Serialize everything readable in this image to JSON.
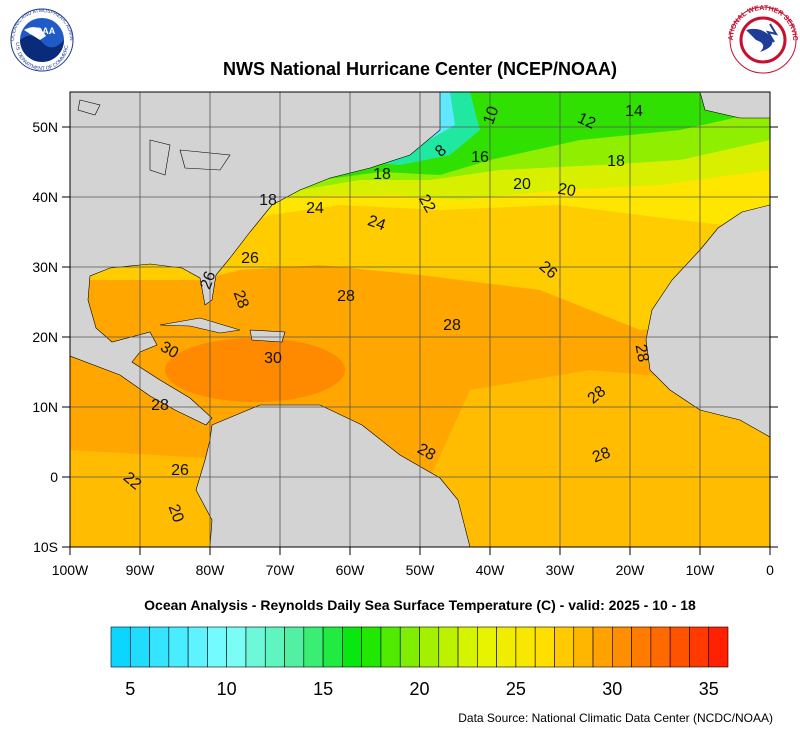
{
  "header": {
    "title": "NWS National Hurricane Center (NCEP/NOAA)",
    "subtitle": "Ocean Analysis - Reynolds Daily Sea Surface Temperature (C) - valid: 2025 - 10 - 18",
    "source": "Data Source: National Climatic Data Center (NCDC/NOAA)"
  },
  "logos": {
    "noaa": "NOAA",
    "noaa_ring": "NATIONAL OCEANIC AND ATMOSPHERIC ADMINISTRATION",
    "noaa_ring_bottom": "U.S. DEPARTMENT OF COMMERCE",
    "nws_ring": "NATIONAL WEATHER SERVICE"
  },
  "map": {
    "xlim": [
      -100,
      0
    ],
    "ylim": [
      -10,
      55
    ],
    "xticks": [
      {
        "value": -100,
        "label": "100W"
      },
      {
        "value": -90,
        "label": "90W"
      },
      {
        "value": -80,
        "label": "80W"
      },
      {
        "value": -70,
        "label": "70W"
      },
      {
        "value": -60,
        "label": "60W"
      },
      {
        "value": -50,
        "label": "50W"
      },
      {
        "value": -40,
        "label": "40W"
      },
      {
        "value": -30,
        "label": "30W"
      },
      {
        "value": -20,
        "label": "20W"
      },
      {
        "value": -10,
        "label": "10W"
      },
      0
    ],
    "yticks": [
      {
        "value": 50,
        "label": "50N"
      },
      {
        "value": 40,
        "label": "40N"
      },
      {
        "value": 30,
        "label": "30N"
      },
      {
        "value": 20,
        "label": "20N"
      },
      {
        "value": 10,
        "label": "10N"
      },
      0,
      {
        "value": -10,
        "label": "10S"
      }
    ],
    "grid": true,
    "contour_labels": [
      10,
      14,
      12,
      8,
      16,
      18,
      18,
      20,
      20,
      18,
      24,
      22,
      24,
      26,
      26,
      26,
      28,
      28,
      28,
      28,
      30,
      30,
      28,
      28,
      28,
      28,
      26,
      22,
      20
    ]
  },
  "colorbar": {
    "range": [
      4,
      36
    ],
    "ticks": [
      5,
      10,
      15,
      20,
      25,
      30,
      35
    ]
  }
}
